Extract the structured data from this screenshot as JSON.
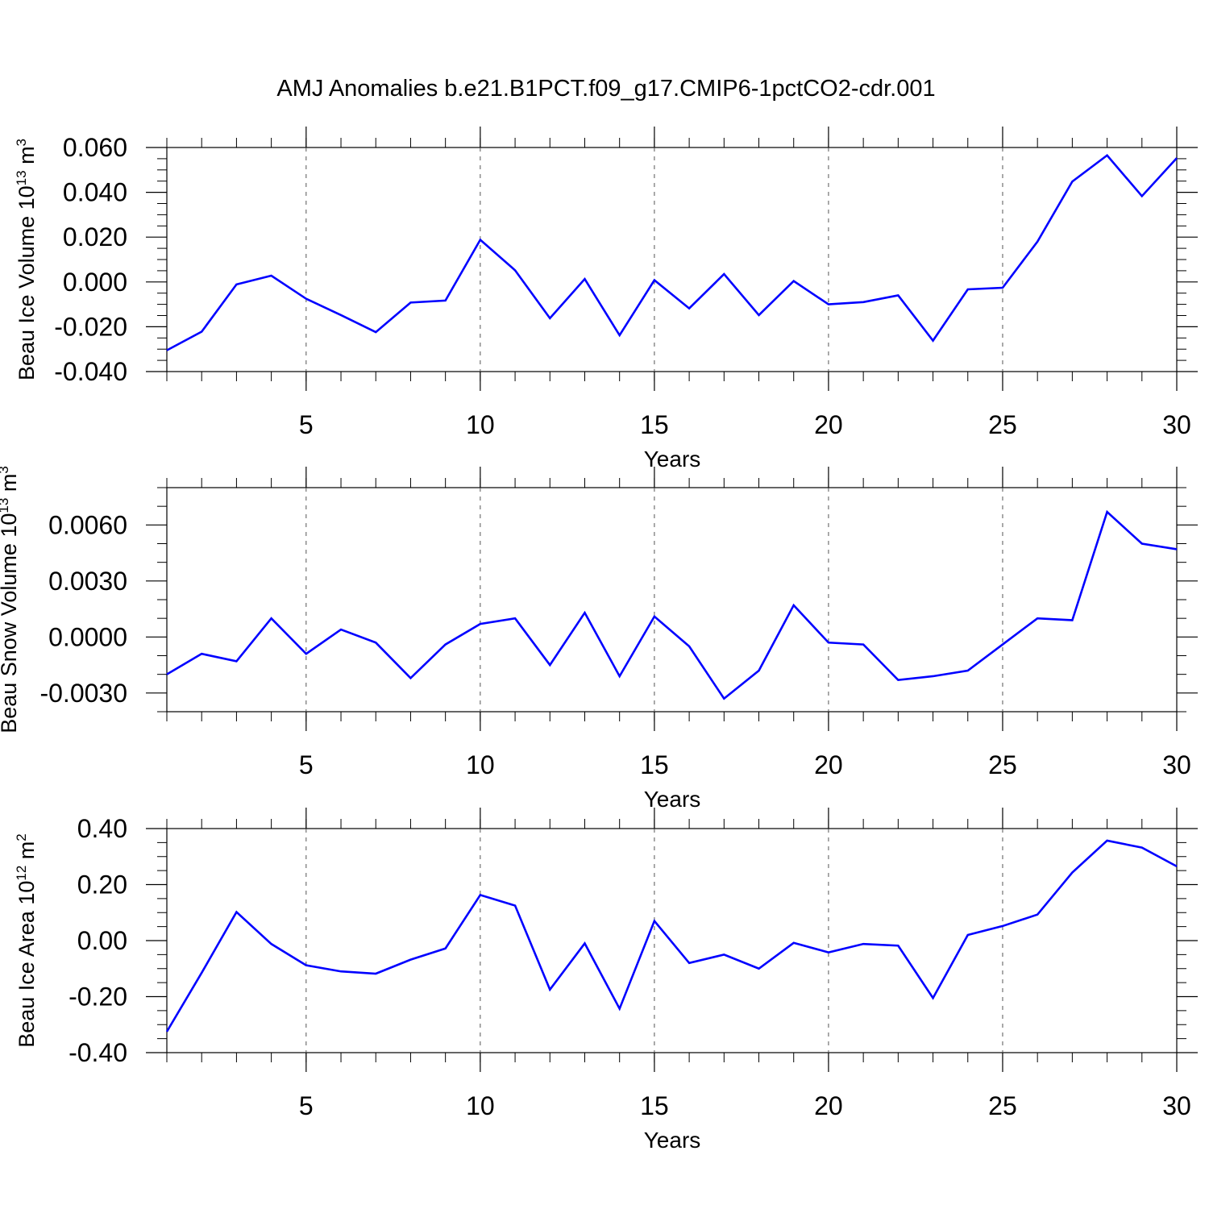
{
  "figure": {
    "title": "AMJ Anomalies b.e21.B1PCT.f09_g17.CMIP6-1pctCO2-cdr.001"
  },
  "line_color": "#0000ff",
  "chart_data": [
    {
      "type": "line",
      "title": "",
      "ylabel_text": "Beau Ice Volume 10",
      "ylabel_exp": "13",
      "ylabel_unit": "m",
      "ylabel_unit_exp": "3",
      "xlabel": "Years",
      "xlim": [
        1,
        30
      ],
      "ylim": [
        -0.04,
        0.06
      ],
      "xticks": [
        5,
        10,
        15,
        20,
        25,
        30
      ],
      "xtick_labels": [
        "5",
        "10",
        "15",
        "20",
        "25",
        "30"
      ],
      "yticks": [
        -0.04,
        -0.02,
        0.0,
        0.02,
        0.04,
        0.06
      ],
      "ytick_labels": [
        "-0.040",
        "-0.020",
        "0.000",
        "0.020",
        "0.040",
        "0.060"
      ],
      "yminor_step": 0.005,
      "grid_x": "dashed",
      "x": [
        1,
        2,
        3,
        4,
        5,
        6,
        7,
        8,
        9,
        10,
        11,
        12,
        13,
        14,
        15,
        16,
        17,
        18,
        19,
        20,
        21,
        22,
        23,
        24,
        25,
        26,
        27,
        28,
        29,
        30
      ],
      "series": [
        {
          "values": [
            -0.0305,
            -0.0222,
            -0.0011,
            0.0028,
            -0.0075,
            -0.0148,
            -0.0224,
            -0.0092,
            -0.0083,
            0.0188,
            0.0052,
            -0.0162,
            0.0013,
            -0.0238,
            0.0008,
            -0.0118,
            0.0035,
            -0.0148,
            0.0004,
            -0.01,
            -0.009,
            -0.006,
            -0.0262,
            -0.0033,
            -0.0026,
            0.018,
            0.0448,
            0.0565,
            0.0383,
            0.0553
          ]
        }
      ]
    },
    {
      "type": "line",
      "title": "",
      "ylabel_text": "Beau Snow Volume 10",
      "ylabel_exp": "13",
      "ylabel_unit": "m",
      "ylabel_unit_exp": "3",
      "xlabel": "Years",
      "xlim": [
        1,
        30
      ],
      "ylim": [
        -0.004,
        0.008
      ],
      "xticks": [
        5,
        10,
        15,
        20,
        25,
        30
      ],
      "xtick_labels": [
        "5",
        "10",
        "15",
        "20",
        "25",
        "30"
      ],
      "yticks": [
        -0.003,
        0.0,
        0.003,
        0.006
      ],
      "ytick_labels": [
        "-0.0030",
        "0.0000",
        "0.0030",
        "0.0060"
      ],
      "yminor_step": 0.001,
      "grid_x": "dashed",
      "x": [
        1,
        2,
        3,
        4,
        5,
        6,
        7,
        8,
        9,
        10,
        11,
        12,
        13,
        14,
        15,
        16,
        17,
        18,
        19,
        20,
        21,
        22,
        23,
        24,
        25,
        26,
        27,
        28,
        29,
        30
      ],
      "series": [
        {
          "values": [
            -0.002,
            -0.0009,
            -0.0013,
            0.001,
            -0.0009,
            0.0004,
            -0.0003,
            -0.0022,
            -0.0004,
            0.0007,
            0.001,
            -0.0015,
            0.0013,
            -0.0021,
            0.0011,
            -0.0005,
            -0.0033,
            -0.0018,
            0.0017,
            -0.0003,
            -0.0004,
            -0.0023,
            -0.0021,
            -0.0018,
            -0.0004,
            0.001,
            0.0009,
            0.0067,
            0.005,
            0.0047
          ]
        }
      ]
    },
    {
      "type": "line",
      "title": "",
      "ylabel_text": "Beau Ice Area 10",
      "ylabel_exp": "12",
      "ylabel_unit": "m",
      "ylabel_unit_exp": "2",
      "xlabel": "Years",
      "xlim": [
        1,
        30
      ],
      "ylim": [
        -0.4,
        0.4
      ],
      "xticks": [
        5,
        10,
        15,
        20,
        25,
        30
      ],
      "xtick_labels": [
        "5",
        "10",
        "15",
        "20",
        "25",
        "30"
      ],
      "yticks": [
        -0.4,
        -0.2,
        0.0,
        0.2,
        0.4
      ],
      "ytick_labels": [
        "-0.40",
        "-0.20",
        "0.00",
        "0.20",
        "0.40"
      ],
      "yminor_step": 0.05,
      "grid_x": "dashed",
      "x": [
        1,
        2,
        3,
        4,
        5,
        6,
        7,
        8,
        9,
        10,
        11,
        12,
        13,
        14,
        15,
        16,
        17,
        18,
        19,
        20,
        21,
        22,
        23,
        24,
        25,
        26,
        27,
        28,
        29,
        30
      ],
      "series": [
        {
          "values": [
            -0.325,
            -0.115,
            0.102,
            -0.012,
            -0.088,
            -0.11,
            -0.118,
            -0.068,
            -0.028,
            0.163,
            0.125,
            -0.175,
            -0.01,
            -0.243,
            0.07,
            -0.08,
            -0.05,
            -0.1,
            -0.008,
            -0.042,
            -0.012,
            -0.018,
            -0.205,
            0.02,
            0.052,
            0.093,
            0.243,
            0.357,
            0.332,
            0.265
          ]
        }
      ]
    }
  ]
}
